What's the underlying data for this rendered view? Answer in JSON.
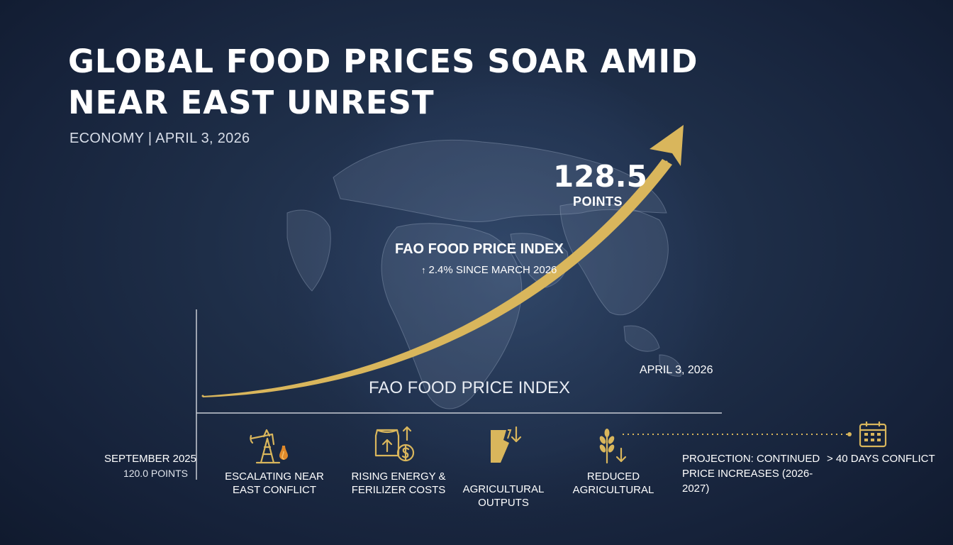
{
  "header": {
    "title": "GLOBAL FOOD PRICES SOAR AMID NEAR EAST UNREST",
    "meta": "ECONOMY | APRIL 3, 2026"
  },
  "colors": {
    "background": "#1a2740",
    "gold": "#d9b65c",
    "text": "#ffffff",
    "axis": "#c8ccd4"
  },
  "chart_data": {
    "type": "line",
    "title": "FAO FOOD PRICE INDEX",
    "xlabel": "FAO FOOD PRICE INDEX",
    "ylabel": "",
    "grid": false,
    "x": [
      "SEPTEMBER 2025",
      "APRIL 3, 2026"
    ],
    "series": [
      {
        "values": [
          120.0,
          128.5
        ]
      }
    ],
    "start": {
      "date": "SEPTEMBER 2025",
      "value_label": "120.0 POINTS"
    },
    "end": {
      "date": "APRIL 3, 2026",
      "value": "128.5",
      "unit": "POINTS"
    },
    "change_annotation": "2.4% SINCE MARCH 2026"
  },
  "factors": [
    {
      "label": "ESCALATING NEAR EAST CONFLICT",
      "icon": "oil-pump-icon"
    },
    {
      "label": "RISING ENERGY & FERILIZER COSTS",
      "icon": "fertilizer-bag-dollar-icon"
    },
    {
      "label": "AGRICULTURAL OUTPUTS",
      "icon": "broken-field-icon"
    },
    {
      "label": "REDUCED AGRICULTURAL",
      "icon": "wheat-down-icon"
    }
  ],
  "projection": {
    "label": "PROJECTION: CONTINUED PRICE INCREASES (2026-2027)",
    "conflict_label": "> 40 DAYS CONFLICT",
    "icon": "calendar-icon"
  }
}
